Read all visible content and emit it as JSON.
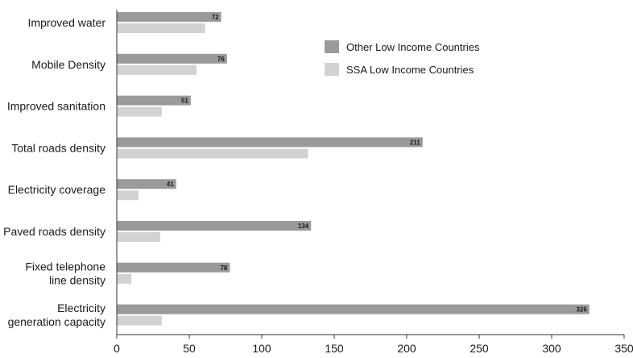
{
  "chart_data": {
    "type": "bar",
    "orientation": "horizontal",
    "categories": [
      [
        "Improved water"
      ],
      [
        "Mobile Density"
      ],
      [
        "Improved sanitation"
      ],
      [
        "Total roads density"
      ],
      [
        "Electricity coverage"
      ],
      [
        "Paved roads density"
      ],
      [
        "Fixed telephone",
        "line density"
      ],
      [
        "Electricity",
        "generation capacity"
      ]
    ],
    "series": [
      {
        "name": "Other Low Income Countries",
        "color": "#9a9a9a",
        "values": [
          72,
          76,
          51,
          211,
          41,
          134,
          78,
          326
        ],
        "data_labels": [
          "72",
          "76",
          "51",
          "211",
          "41",
          "134",
          "78",
          "326"
        ]
      },
      {
        "name": "SSA Low Income Countries",
        "color": "#d2d2d2",
        "values": [
          61,
          55,
          31,
          132,
          15,
          30,
          10,
          31
        ]
      }
    ],
    "xlim": [
      0,
      350
    ],
    "xticks": [
      "0",
      "50",
      "100",
      "150",
      "200",
      "250",
      "300",
      "350"
    ],
    "legend_position": "top-right",
    "grid": false
  }
}
